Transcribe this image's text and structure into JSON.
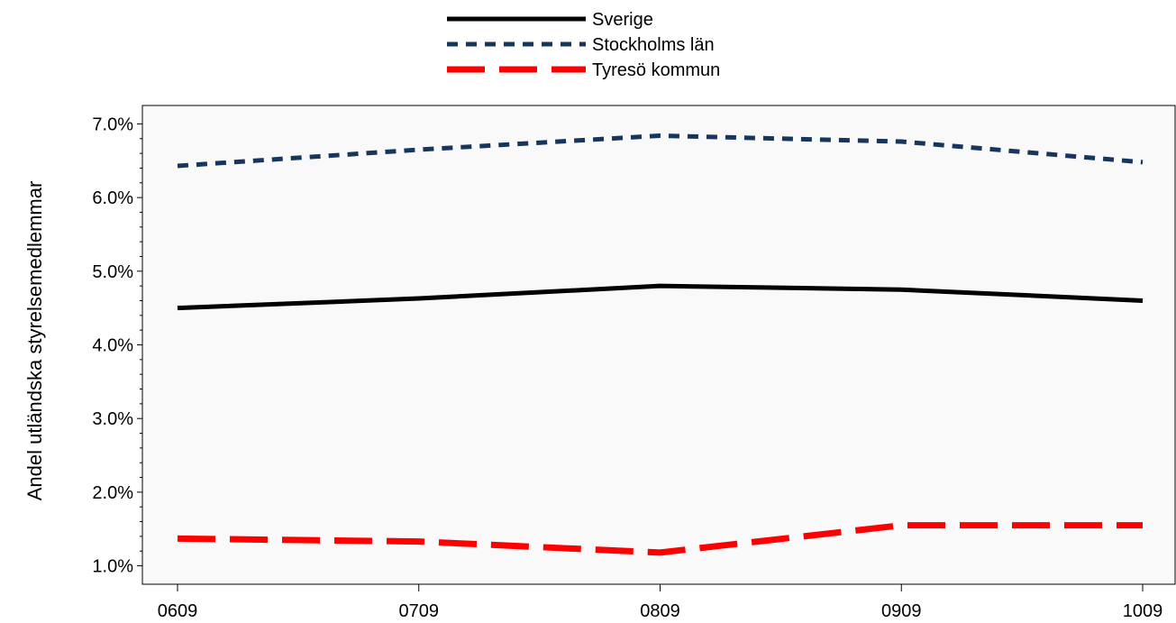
{
  "chart_data": {
    "type": "line",
    "title": "",
    "xlabel": "",
    "ylabel": "Andel utländska styrelsemedlemmar",
    "categories": [
      "0609",
      "0709",
      "0809",
      "0909",
      "1009"
    ],
    "y_ticks": [
      "1.0%",
      "2.0%",
      "3.0%",
      "4.0%",
      "5.0%",
      "6.0%",
      "7.0%"
    ],
    "y_tick_values": [
      1.0,
      2.0,
      3.0,
      4.0,
      5.0,
      6.0,
      7.0
    ],
    "ylim": [
      0.75,
      7.25
    ],
    "y_unit": "%",
    "grid": false,
    "legend_position": "top-center",
    "plot_background": "#f9f9f9",
    "series": [
      {
        "name": "Sverige",
        "values": [
          4.5,
          4.63,
          4.8,
          4.75,
          4.6
        ],
        "color": "#000000",
        "style": "solid"
      },
      {
        "name": "Stockholms län",
        "values": [
          6.43,
          6.65,
          6.84,
          6.76,
          6.48
        ],
        "color": "#17365d",
        "style": "dotted"
      },
      {
        "name": "Tyresö kommun",
        "values": [
          1.37,
          1.33,
          1.18,
          1.55,
          1.55
        ],
        "color": "#ff0000",
        "style": "dashed"
      }
    ]
  }
}
